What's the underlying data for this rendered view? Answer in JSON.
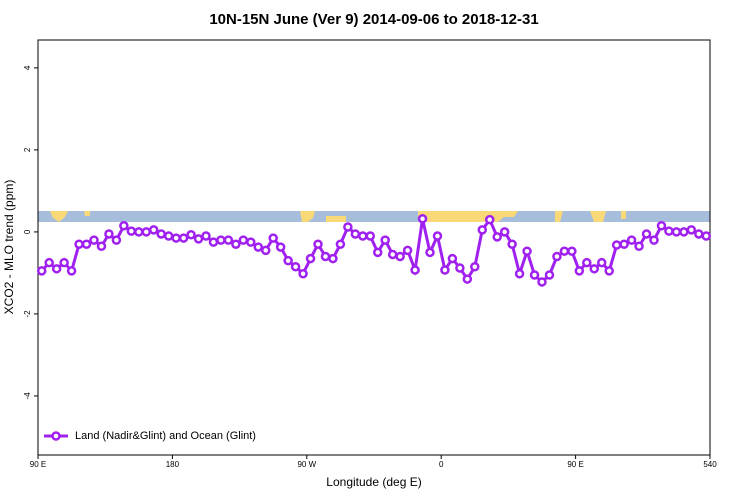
{
  "chart_data": {
    "type": "line",
    "title": "10N-15N June (Ver 9)   2014-09-06 to 2018-12-31",
    "x_label": "Longitude (deg E)",
    "y_label": "XCO2 - MLO trend (ppm)",
    "x": [
      92.5,
      97.5,
      102.5,
      107.5,
      112.5,
      117.5,
      122.5,
      127.5,
      132.5,
      137.5,
      142.5,
      147.5,
      152.5,
      157.5,
      162.5,
      167.5,
      172.5,
      177.5,
      182.5,
      187.5,
      192.5,
      197.5,
      202.5,
      207.5,
      212.5,
      217.5,
      222.5,
      227.5,
      232.5,
      237.5,
      242.5,
      247.5,
      252.5,
      257.5,
      262.5,
      267.5,
      272.5,
      277.5,
      282.5,
      287.5,
      292.5,
      297.5,
      302.5,
      307.5,
      312.5,
      317.5,
      322.5,
      327.5,
      332.5,
      337.5,
      342.5,
      347.5,
      352.5,
      357.5,
      362.5,
      367.5,
      372.5,
      377.5,
      382.5,
      387.5,
      392.5,
      397.5,
      402.5,
      407.5,
      412.5,
      417.5,
      422.5,
      427.5,
      432.5,
      437.5,
      442.5,
      447.5,
      452.5,
      457.5,
      462.5,
      467.5,
      472.5,
      477.5,
      482.5,
      487.5,
      492.5,
      497.5,
      502.5,
      507.5,
      512.5,
      517.5,
      522.5,
      527.5,
      532.5,
      537.5
    ],
    "series": [
      {
        "name": "Land (Nadir&Glint) and Ocean (Glint)",
        "color": "#a020f0",
        "values": [
          -0.95,
          -0.75,
          -0.9,
          -0.75,
          -0.95,
          -0.3,
          -0.3,
          -0.2,
          -0.35,
          -0.05,
          -0.2,
          0.15,
          0.02,
          0,
          0,
          0.05,
          -0.05,
          -0.1,
          -0.15,
          -0.15,
          -0.07,
          -0.17,
          -0.1,
          -0.25,
          -0.2,
          -0.2,
          -0.3,
          -0.2,
          -0.25,
          -0.37,
          -0.45,
          -0.15,
          -0.37,
          -0.7,
          -0.85,
          -1.02,
          -0.65,
          -0.3,
          -0.6,
          -0.65,
          -0.3,
          0.12,
          -0.05,
          -0.1,
          -0.1,
          -0.5,
          -0.2,
          -0.55,
          -0.6,
          -0.45,
          -0.93,
          0.32,
          -0.5,
          -0.1,
          -0.93,
          -0.65,
          -0.88,
          -1.15,
          -0.85,
          0.05,
          0.3,
          -0.12,
          0,
          -0.3,
          -1.02,
          -0.47,
          -1.05,
          -1.22,
          -1.05,
          -0.6,
          -0.47,
          -0.47,
          -0.95,
          -0.75,
          -0.9,
          -0.75,
          -0.95,
          -0.32,
          -0.3,
          -0.2,
          -0.35,
          -0.05,
          -0.2,
          0.15,
          0.02,
          0,
          0,
          0.05,
          -0.05,
          -0.1
        ]
      }
    ],
    "xlim": [
      90,
      540
    ],
    "xticks": [
      {
        "value": 90,
        "label": "90 E"
      },
      180,
      {
        "value": 270,
        "label": "90 W"
      },
      {
        "value": 360,
        "label": "0"
      },
      {
        "value": 450,
        "label": "90 E"
      },
      540
    ],
    "ylim": [
      -5.44,
      4.68
    ],
    "yticks": [
      -4,
      -2,
      0,
      2,
      4
    ],
    "legend": "bottom-left"
  }
}
